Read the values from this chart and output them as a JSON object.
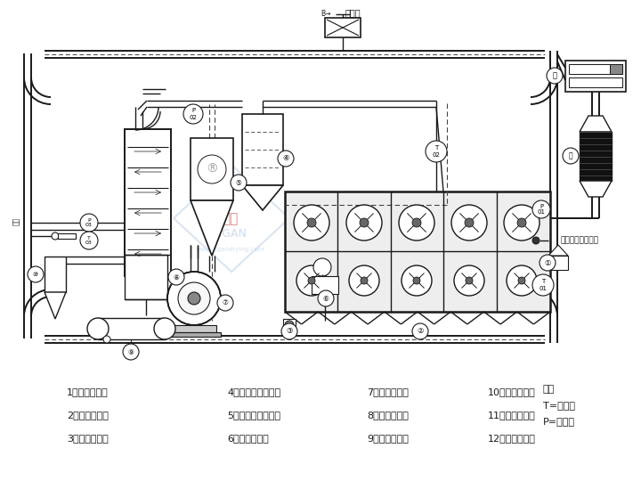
{
  "bg_color": "#ffffff",
  "line_color": "#1a1a1a",
  "dashed_color": "#444444",
  "watermark_color": "#b8cce4",
  "watermark_red": "#c0504d",
  "legend_items": [
    "1、密闭进料器",
    "2、汸腾床主机",
    "3、密闭出料器",
    "4、一级布袋除尘器",
    "5、二级布袋除尘器",
    "6、密闭出料阀",
    "7、密闭引风机",
    "8、多级冷凝器",
    "9、溦媒回收罐",
    "10、二级洗液器",
    "11、密闭送风机",
    "12、密闭加热器"
  ],
  "note_text": "注：\nT=测温点\nP=测压点",
  "nitrogen_valve_label": "氮气阀",
  "o2_detector_label": "氧浓度在线检测仪",
  "exhaust_label": "排空"
}
